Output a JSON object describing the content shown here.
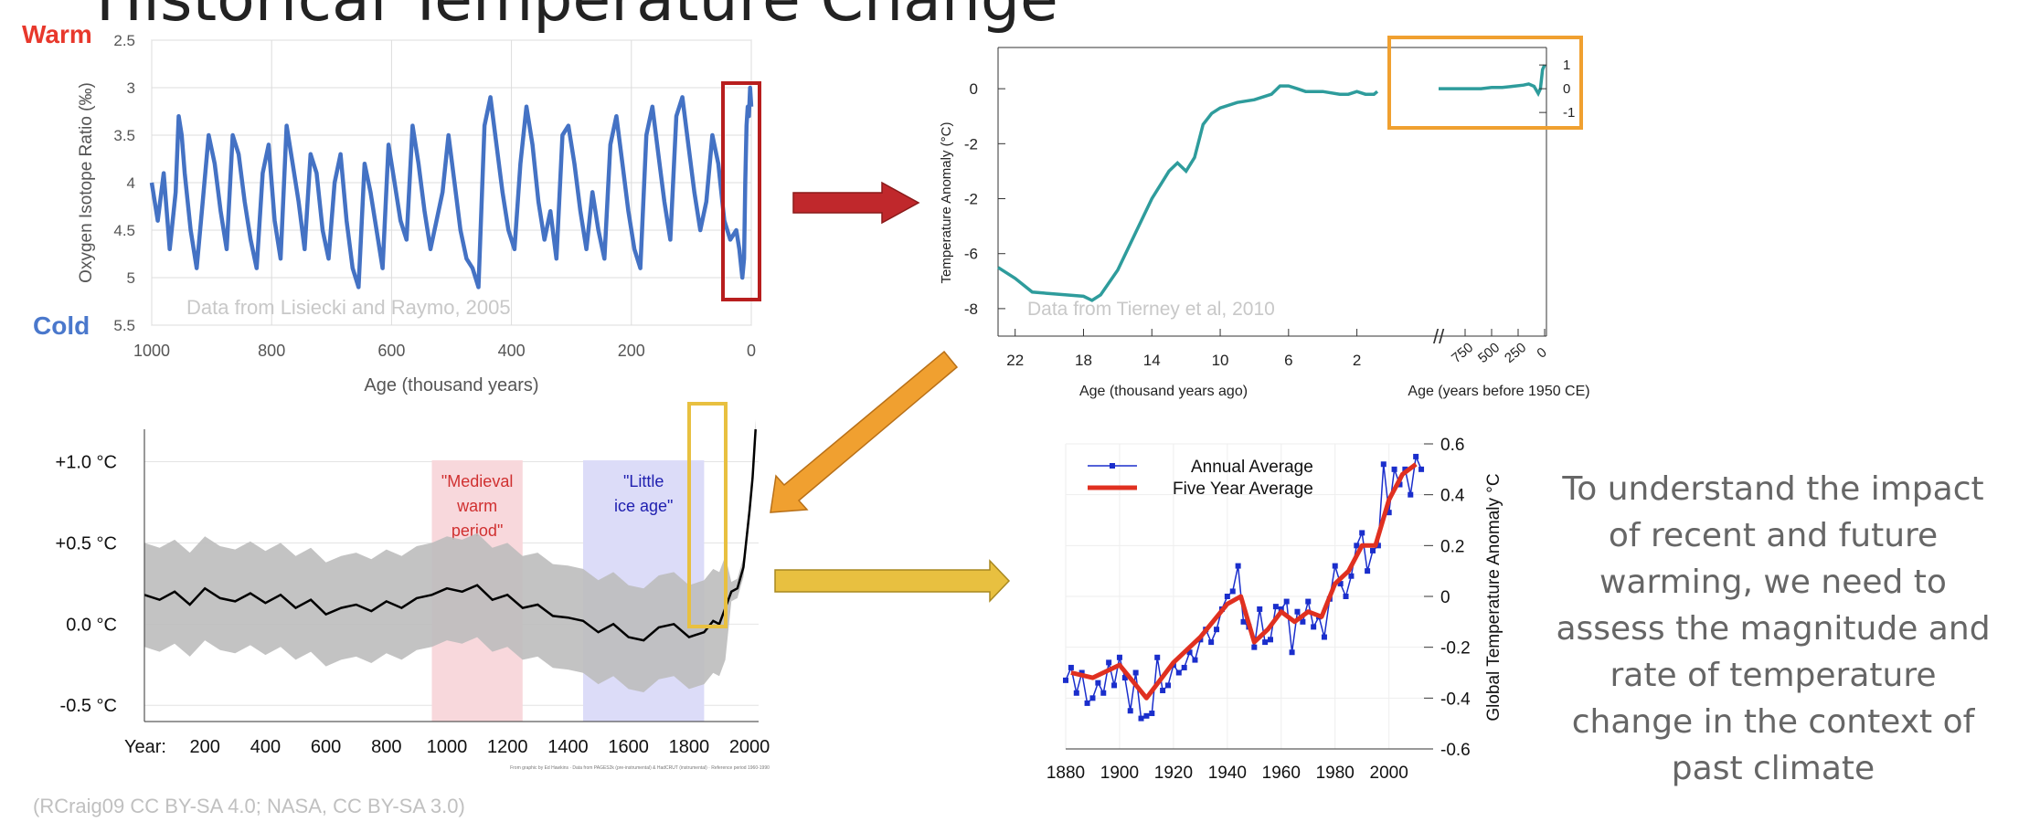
{
  "page_title": "Historical Temperature Change",
  "caption": "To understand the impact of recent and future warming, we need to assess the magnitude and rate of temperature change in the context of past climate",
  "credit": "(RCraig09 CC BY-SA 4.0; NASA, CC BY-SA 3.0)",
  "colors": {
    "blue_line": "#4472c4",
    "teal_line": "#2e9c9c",
    "red_arrow": "#c0282c",
    "orange": "#f0a030",
    "yellow": "#e8c040",
    "warm": "#e8382c",
    "cold": "#4a78cc",
    "annual": "#1a2ecc",
    "five_year": "#e03020"
  },
  "chart_data": [
    {
      "id": "lisiecki",
      "type": "line",
      "title": "",
      "xlabel": "Age (thousand years)",
      "ylabel": "Oxygen Isotope Ratio (‰)",
      "label_warm": "Warm",
      "label_cold": "Cold",
      "note": "Data from Lisiecki and Raymo, 2005",
      "xlim": [
        1000,
        0
      ],
      "ylim": [
        5.5,
        2.5
      ],
      "y_inverted": true,
      "x_ticks": [
        1000,
        800,
        600,
        400,
        200,
        0
      ],
      "y_ticks": [
        "2.5",
        "3",
        "3.5",
        "4",
        "4.5",
        "5",
        "5.5"
      ],
      "grid": true,
      "x": [
        1000,
        990,
        980,
        970,
        960,
        955,
        950,
        945,
        935,
        925,
        915,
        905,
        895,
        885,
        875,
        865,
        855,
        845,
        835,
        825,
        815,
        805,
        795,
        785,
        775,
        765,
        755,
        745,
        735,
        725,
        715,
        705,
        695,
        685,
        675,
        665,
        655,
        645,
        635,
        625,
        615,
        605,
        595,
        585,
        575,
        565,
        555,
        545,
        535,
        525,
        515,
        505,
        495,
        485,
        475,
        465,
        455,
        445,
        435,
        425,
        415,
        405,
        395,
        385,
        375,
        365,
        355,
        345,
        335,
        325,
        315,
        305,
        295,
        285,
        275,
        265,
        255,
        245,
        235,
        225,
        215,
        205,
        195,
        185,
        175,
        165,
        155,
        145,
        135,
        125,
        115,
        105,
        95,
        85,
        75,
        65,
        55,
        45,
        35,
        25,
        20,
        15,
        12,
        10,
        8,
        6,
        4,
        2,
        0
      ],
      "y": [
        4.0,
        4.4,
        3.9,
        4.7,
        4.1,
        3.3,
        3.5,
        3.9,
        4.5,
        4.9,
        4.2,
        3.5,
        3.8,
        4.3,
        4.7,
        3.5,
        3.7,
        4.2,
        4.6,
        4.9,
        3.9,
        3.6,
        4.4,
        4.8,
        3.4,
        3.8,
        4.2,
        4.7,
        3.7,
        3.9,
        4.5,
        4.8,
        4.0,
        3.7,
        4.4,
        4.9,
        5.1,
        3.8,
        4.1,
        4.5,
        4.9,
        3.6,
        4.0,
        4.4,
        4.6,
        3.4,
        3.8,
        4.3,
        4.7,
        4.4,
        4.1,
        3.5,
        4.0,
        4.5,
        4.8,
        4.9,
        5.1,
        3.4,
        3.1,
        3.6,
        4.1,
        4.5,
        4.7,
        3.8,
        3.2,
        3.6,
        4.2,
        4.6,
        4.3,
        4.8,
        3.5,
        3.4,
        3.8,
        4.3,
        4.7,
        4.1,
        4.5,
        4.8,
        3.6,
        3.3,
        3.8,
        4.3,
        4.7,
        4.9,
        3.5,
        3.2,
        3.7,
        4.2,
        4.6,
        3.3,
        3.1,
        3.6,
        4.1,
        4.5,
        4.2,
        3.5,
        3.8,
        4.4,
        4.6,
        4.5,
        4.7,
        5.0,
        4.8,
        4.0,
        3.4,
        3.2,
        3.3,
        3.0,
        3.2
      ]
    },
    {
      "id": "tierney",
      "type": "line",
      "title": "",
      "xlabel": "Age (thousand years ago)",
      "xlabel2": "Age (years before 1950 CE)",
      "ylabel": "Temperature Anomaly (°C)",
      "note": "Data from Tierney et al, 2010",
      "xlim": [
        23,
        0
      ],
      "ylim": [
        -9,
        1.5
      ],
      "x_ticks": [
        22,
        18,
        14,
        10,
        6,
        2
      ],
      "x2_ticks": [
        "750",
        "500",
        "250",
        "0"
      ],
      "y_ticks": [
        "0",
        "-2",
        "-2",
        "-6",
        "-8"
      ],
      "inset_y_ticks": [
        "1",
        "0",
        "-1"
      ],
      "x": [
        23,
        22,
        21,
        20,
        19,
        18,
        17.5,
        17,
        16,
        15,
        14,
        13,
        12.5,
        12,
        11.5,
        11,
        10.5,
        10,
        9,
        8,
        7,
        6.5,
        6,
        5.5,
        5,
        4,
        3,
        2.5,
        2,
        1.5,
        1,
        0.8
      ],
      "y": [
        -6.5,
        -6.9,
        -7.4,
        -7.45,
        -7.5,
        -7.55,
        -7.7,
        -7.5,
        -6.6,
        -5.3,
        -4.0,
        -3.0,
        -2.7,
        -3.0,
        -2.5,
        -1.3,
        -0.9,
        -0.7,
        -0.5,
        -0.4,
        -0.2,
        0.1,
        0.1,
        0.0,
        -0.1,
        -0.1,
        -0.2,
        -0.2,
        -0.1,
        -0.2,
        -0.2,
        -0.1
      ],
      "recent": {
        "years": [
          1000,
          900,
          800,
          700,
          600,
          500,
          400,
          300,
          200,
          150,
          100,
          60,
          40,
          20,
          0
        ],
        "values": [
          0.0,
          0.0,
          0.0,
          0.0,
          0.0,
          0.05,
          0.05,
          0.1,
          0.15,
          0.2,
          0.1,
          -0.2,
          0.0,
          0.8,
          1.0
        ]
      }
    },
    {
      "id": "common_era",
      "type": "area",
      "y_ticks": [
        "+1.0 °C",
        "+0.5 °C",
        "0.0 °C",
        "-0.5 °C"
      ],
      "x_tick_prefix": "Year:",
      "x_ticks": [
        200,
        400,
        600,
        800,
        1000,
        1200,
        1400,
        1600,
        1800,
        2000
      ],
      "xlim": [
        0,
        2030
      ],
      "ylim": [
        -0.6,
        1.2
      ],
      "periods": [
        {
          "label": "\"Medieval warm period\"",
          "lines": [
            "\"Medieval",
            "warm",
            "period\""
          ],
          "start": 950,
          "end": 1250,
          "color": "#f8d8dc",
          "text_color": "#d03030"
        },
        {
          "label": "\"Little ice age\"",
          "lines": [
            "\"Little",
            "ice age\""
          ],
          "start": 1450,
          "end": 1850,
          "color": "#dcdcf8",
          "text_color": "#2020b0"
        }
      ],
      "fine_print": "From graphic by Ed Hawkins · Data from PAGES2k (pre-instrumental) & HadCRUT (instrumental) · Reference period 1960-1990",
      "series_x": [
        0,
        50,
        100,
        150,
        200,
        250,
        300,
        350,
        400,
        450,
        500,
        550,
        600,
        650,
        700,
        750,
        800,
        850,
        900,
        950,
        1000,
        1050,
        1100,
        1150,
        1200,
        1250,
        1300,
        1350,
        1400,
        1450,
        1500,
        1550,
        1600,
        1650,
        1700,
        1750,
        1800,
        1850,
        1880,
        1900,
        1920,
        1940,
        1960,
        1980,
        2000,
        2010,
        2020
      ],
      "series_y": [
        0.18,
        0.15,
        0.2,
        0.12,
        0.22,
        0.16,
        0.14,
        0.19,
        0.13,
        0.18,
        0.1,
        0.15,
        0.06,
        0.1,
        0.12,
        0.08,
        0.14,
        0.1,
        0.16,
        0.18,
        0.22,
        0.2,
        0.24,
        0.15,
        0.18,
        0.1,
        0.12,
        0.05,
        0.04,
        0.02,
        -0.05,
        0.0,
        -0.08,
        -0.1,
        -0.02,
        0.0,
        -0.08,
        -0.05,
        0.02,
        0.0,
        0.1,
        0.2,
        0.22,
        0.35,
        0.7,
        0.9,
        1.2
      ]
    },
    {
      "id": "nasa",
      "type": "line",
      "ylabel": "Global Temperature Anomaly °C",
      "xlim": [
        1880,
        2013
      ],
      "ylim": [
        -0.6,
        0.6
      ],
      "x_ticks": [
        1880,
        1900,
        1920,
        1940,
        1960,
        1980,
        2000
      ],
      "y_ticks": [
        "0.6",
        "0.4",
        "0.2",
        "0",
        "-0.2",
        "-0.4",
        "-0.6"
      ],
      "legend": "top-left",
      "series": [
        {
          "name": "Annual Average",
          "x": [
            1880,
            1882,
            1884,
            1886,
            1888,
            1890,
            1892,
            1894,
            1896,
            1898,
            1900,
            1902,
            1904,
            1906,
            1908,
            1910,
            1912,
            1914,
            1916,
            1918,
            1920,
            1922,
            1924,
            1926,
            1928,
            1930,
            1932,
            1934,
            1936,
            1938,
            1940,
            1942,
            1944,
            1946,
            1948,
            1950,
            1952,
            1954,
            1956,
            1958,
            1960,
            1962,
            1964,
            1966,
            1968,
            1970,
            1972,
            1974,
            1976,
            1978,
            1980,
            1982,
            1984,
            1986,
            1988,
            1990,
            1992,
            1994,
            1996,
            1998,
            2000,
            2002,
            2004,
            2006,
            2008,
            2010,
            2012
          ],
          "y": [
            -0.33,
            -0.28,
            -0.38,
            -0.3,
            -0.42,
            -0.4,
            -0.34,
            -0.38,
            -0.26,
            -0.35,
            -0.24,
            -0.32,
            -0.45,
            -0.3,
            -0.48,
            -0.47,
            -0.46,
            -0.24,
            -0.37,
            -0.35,
            -0.27,
            -0.3,
            -0.28,
            -0.22,
            -0.25,
            -0.17,
            -0.13,
            -0.18,
            -0.13,
            -0.05,
            0.0,
            0.02,
            0.12,
            -0.1,
            -0.12,
            -0.2,
            -0.05,
            -0.18,
            -0.17,
            -0.04,
            -0.05,
            -0.02,
            -0.22,
            -0.06,
            -0.1,
            -0.02,
            -0.12,
            -0.08,
            -0.16,
            -0.01,
            0.12,
            0.05,
            0.0,
            0.08,
            0.2,
            0.25,
            0.1,
            0.18,
            0.2,
            0.52,
            0.33,
            0.5,
            0.44,
            0.5,
            0.4,
            0.55,
            0.5
          ]
        },
        {
          "name": "Five Year Average",
          "x": [
            1882,
            1890,
            1900,
            1910,
            1920,
            1930,
            1940,
            1945,
            1950,
            1955,
            1960,
            1965,
            1970,
            1975,
            1980,
            1985,
            1990,
            1995,
            2000,
            2005,
            2010
          ],
          "y": [
            -0.3,
            -0.32,
            -0.27,
            -0.4,
            -0.26,
            -0.16,
            -0.03,
            0.0,
            -0.18,
            -0.13,
            -0.06,
            -0.1,
            -0.06,
            -0.08,
            0.05,
            0.1,
            0.2,
            0.2,
            0.38,
            0.48,
            0.52
          ]
        }
      ]
    }
  ]
}
